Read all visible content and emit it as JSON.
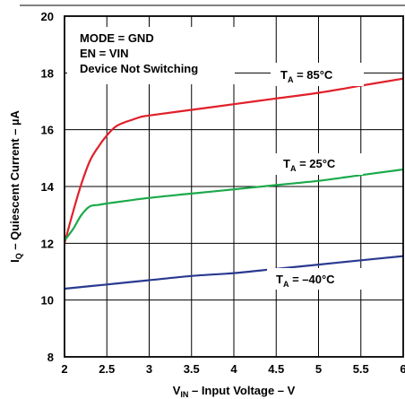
{
  "chart_data": {
    "type": "line",
    "xlabel_main": "V",
    "xlabel_sub": "IN",
    "xlabel_rest": " – Input Voltage – V",
    "ylabel_main": "I",
    "ylabel_sub": "Q",
    "ylabel_rest": " – Quiescent Current – µA",
    "xlim": [
      2,
      6
    ],
    "ylim": [
      8,
      20
    ],
    "x_ticks": [
      2,
      2.5,
      3,
      3.5,
      4,
      4.5,
      5,
      5.5,
      6
    ],
    "x_tick_labels": [
      "2",
      "2.5",
      "3",
      "3.5",
      "4",
      "4.5",
      "5",
      "5.5",
      "6"
    ],
    "y_ticks": [
      8,
      10,
      12,
      14,
      16,
      18,
      20
    ],
    "y_tick_labels": [
      "8",
      "10",
      "12",
      "14",
      "16",
      "18",
      "20"
    ],
    "grid": true,
    "annotations": [
      "MODE = GND",
      "EN = VIN",
      "Device Not Switching"
    ],
    "series": [
      {
        "label_main": "T",
        "label_sub": "A",
        "label_rest": " = 85°C",
        "color": "#e0202a",
        "x": [
          2.0,
          2.1,
          2.2,
          2.3,
          2.4,
          2.5,
          2.6,
          2.7,
          2.8,
          2.9,
          3.0,
          3.5,
          4.0,
          4.5,
          5.0,
          5.5,
          6.0
        ],
        "y": [
          12.0,
          13.1,
          14.1,
          14.9,
          15.4,
          15.8,
          16.1,
          16.25,
          16.35,
          16.45,
          16.5,
          16.7,
          16.9,
          17.1,
          17.3,
          17.55,
          17.8
        ]
      },
      {
        "label_main": "T",
        "label_sub": "A",
        "label_rest": " = 25°C",
        "color": "#1aaa4a",
        "x": [
          2.0,
          2.1,
          2.2,
          2.3,
          2.4,
          2.5,
          3.0,
          3.5,
          4.0,
          4.5,
          5.0,
          5.5,
          6.0
        ],
        "y": [
          12.1,
          12.5,
          13.0,
          13.3,
          13.35,
          13.4,
          13.6,
          13.75,
          13.9,
          14.05,
          14.2,
          14.4,
          14.6
        ]
      },
      {
        "label_main": "T",
        "label_sub": "A",
        "label_rest": " = –40°C",
        "color": "#2a3a90",
        "x": [
          2.0,
          2.5,
          3.0,
          3.5,
          4.0,
          4.5,
          5.0,
          5.5,
          6.0
        ],
        "y": [
          10.4,
          10.55,
          10.7,
          10.85,
          10.95,
          11.1,
          11.25,
          11.4,
          11.55
        ]
      }
    ]
  }
}
